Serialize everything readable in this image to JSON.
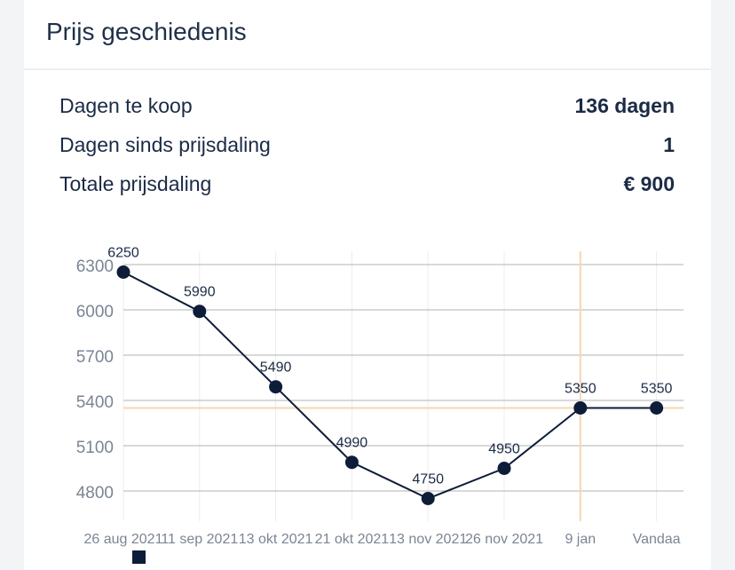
{
  "card": {
    "title": "Prijs geschiedenis"
  },
  "stats": [
    {
      "label": "Dagen te koop",
      "value": "136 dagen"
    },
    {
      "label": "Dagen sinds prijsdaling",
      "value": "1"
    },
    {
      "label": "Totale prijsdaling",
      "value": "€ 900"
    }
  ],
  "colors": {
    "series": "#0d1c38",
    "grid": "#b3b3b3",
    "reference_line": "#f5d7b3",
    "tick_text": "#7b8594"
  },
  "legend_icon": "square-marker-icon",
  "chart_data": {
    "type": "line",
    "categories": [
      "26 aug 2021",
      "11 sep 2021",
      "13 okt 2021",
      "21 okt 2021",
      "13 nov 2021",
      "26 nov 2021",
      "9 jan",
      "Vandaag"
    ],
    "visible_category_labels": [
      "26 aug 2021",
      "11 sep 2021",
      "13 okt 2021",
      "21 okt 2021",
      "13 nov 2021",
      "26 nov 2021",
      "9 jan",
      "Vandaa"
    ],
    "series": [
      {
        "values": [
          6250,
          5990,
          5490,
          4990,
          4750,
          4950,
          5350,
          5350
        ]
      }
    ],
    "data_labels": [
      "6250",
      "5990",
      "5490",
      "4990",
      "4750",
      "4950",
      "5350",
      "5350"
    ],
    "yticks": [
      "6300",
      "6000",
      "5700",
      "5400",
      "5100",
      "4800"
    ],
    "ylim": [
      4750,
      6400
    ],
    "grid": true,
    "reference_lines": {
      "x": "9 jan",
      "y": 5350
    }
  }
}
